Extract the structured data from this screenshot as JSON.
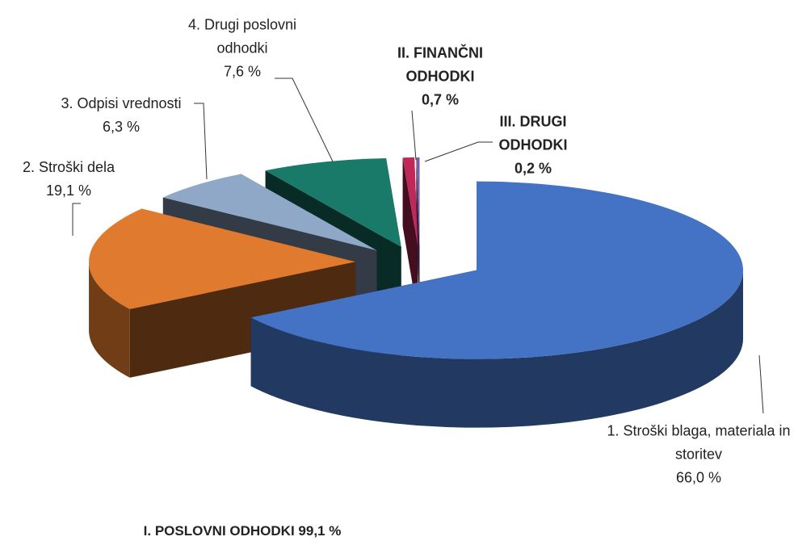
{
  "chart_data": {
    "type": "pie3d",
    "categories": [
      "1. Stroški blaga, materiala in storitev",
      "2. Stroški dela",
      "3. Odpisi vrednosti",
      "4. Drugi poslovni odhodki",
      "II. FINANČNI ODHODKI",
      "III. DRUGI ODHODKI"
    ],
    "values": [
      66.0,
      19.1,
      6.3,
      7.6,
      0.7,
      0.2
    ],
    "value_labels": [
      "66,0 %",
      "19,1 %",
      "6,3 %",
      "7,6 %",
      "0,7 %",
      "0,2 %"
    ],
    "colors": [
      "#4472c4",
      "#e07a2e",
      "#8fa8c8",
      "#1a7a6a",
      "#c0285a",
      "#7b5ea7"
    ],
    "annotation": "I. POSLOVNI ODHODKI 99,1 %"
  }
}
